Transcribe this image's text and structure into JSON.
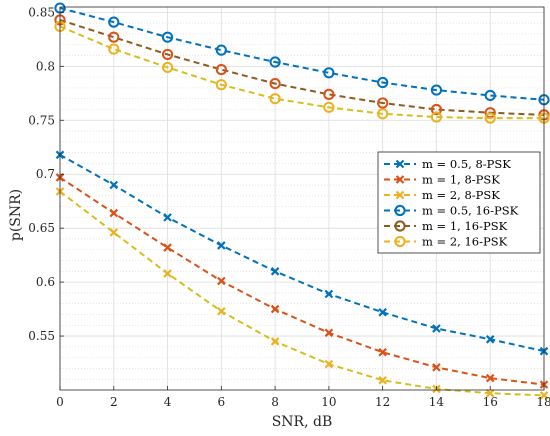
{
  "chart_data": {
    "type": "line",
    "title": "",
    "xlabel": "SNR, dB",
    "ylabel": "p(SNR)",
    "xlim": [
      0,
      18
    ],
    "ylim": [
      0.5,
      0.855
    ],
    "x": [
      0,
      2,
      4,
      6,
      8,
      10,
      12,
      14,
      16,
      18
    ],
    "xticks": [
      "0",
      "2",
      "4",
      "6",
      "8",
      "10",
      "12",
      "14",
      "16",
      "18"
    ],
    "yticks": [
      {
        "value": 0.55,
        "label": "0.55"
      },
      {
        "value": 0.6,
        "label": "0.6"
      },
      {
        "value": 0.65,
        "label": "0.65"
      },
      {
        "value": 0.7,
        "label": "0.7"
      },
      {
        "value": 0.75,
        "label": "0.75"
      },
      {
        "value": 0.8,
        "label": "0.8"
      },
      {
        "value": 0.85,
        "label": "0.85"
      }
    ],
    "grid": true,
    "legend_position": "right",
    "series": [
      {
        "name": "m = 0.5, 8-PSK",
        "color": "#0072BD",
        "marker": "x",
        "values": [
          0.718,
          0.69,
          0.66,
          0.634,
          0.61,
          0.589,
          0.572,
          0.557,
          0.547,
          0.536
        ]
      },
      {
        "name": "m = 1, 8-PSK",
        "color": "#D95319",
        "marker": "x",
        "values": [
          0.697,
          0.664,
          0.632,
          0.601,
          0.575,
          0.553,
          0.535,
          0.521,
          0.511,
          0.505
        ]
      },
      {
        "name": "m = 2, 8-PSK",
        "color": "#EDB120",
        "marker": "x",
        "values": [
          0.684,
          0.646,
          0.608,
          0.573,
          0.545,
          0.524,
          0.509,
          0.501,
          0.497,
          0.495
        ]
      },
      {
        "name": "m = 0.5, 16-PSK",
        "color": "#0072BD",
        "marker": "o",
        "values": [
          0.854,
          0.841,
          0.827,
          0.815,
          0.804,
          0.794,
          0.785,
          0.778,
          0.773,
          0.769
        ]
      },
      {
        "name": "m = 1, 16-PSK",
        "color": "#D95319",
        "marker": "o",
        "values": [
          0.843,
          0.827,
          0.811,
          0.797,
          0.784,
          0.774,
          0.766,
          0.76,
          0.757,
          0.755
        ]
      },
      {
        "name": "m = 2, 16-PSK",
        "color": "#EDB120",
        "marker": "o",
        "values": [
          0.837,
          0.816,
          0.799,
          0.783,
          0.77,
          0.762,
          0.756,
          0.753,
          0.752,
          0.752
        ]
      }
    ],
    "legend_series_colors": [
      "#0072BD",
      "#D95319",
      "#EDB120",
      "#0072BD",
      "#8C5C1E",
      "#EDB120"
    ],
    "line_colors_under_markers": [
      "#0072BD",
      "#D95319",
      "#D4BF1E",
      "#0072BD",
      "#8C5C1E",
      "#D4BF1E"
    ]
  }
}
